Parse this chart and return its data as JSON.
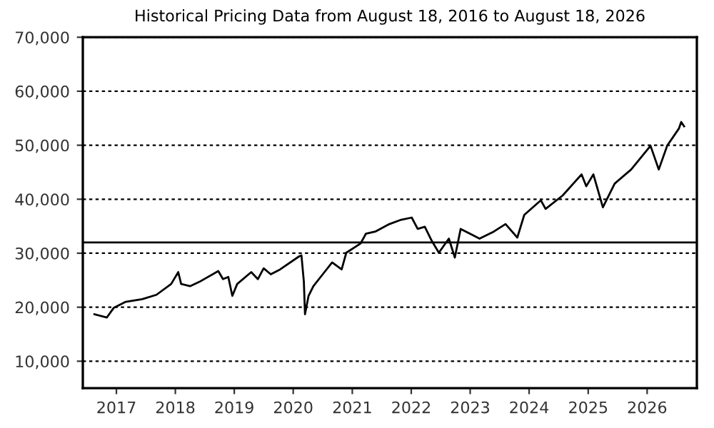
{
  "chart_data": {
    "type": "line",
    "title": "Historical Pricing Data from August 18, 2016 to August 18, 2026",
    "x": [
      "2016-08-18",
      "2016-11-03",
      "2016-12-16",
      "2017-02-28",
      "2017-06-10",
      "2017-09-06",
      "2017-12-06",
      "2018-01-19",
      "2018-02-06",
      "2018-04-02",
      "2018-05-30",
      "2018-09-24",
      "2018-10-23",
      "2018-11-25",
      "2018-12-20",
      "2019-01-19",
      "2019-04-16",
      "2019-05-27",
      "2019-07-02",
      "2019-08-15",
      "2019-10-12",
      "2020-02-06",
      "2020-02-21",
      "2020-03-07",
      "2020-03-14",
      "2020-04-05",
      "2020-05-05",
      "2020-07-02",
      "2020-08-29",
      "2020-10-27",
      "2020-11-25",
      "2021-02-21",
      "2021-03-26",
      "2021-05-23",
      "2021-08-19",
      "2021-10-31",
      "2022-01-04",
      "2022-02-10",
      "2022-03-26",
      "2022-05-08",
      "2022-06-21",
      "2022-08-22",
      "2022-09-28",
      "2022-11-03",
      "2023-01-01",
      "2023-02-28",
      "2023-05-27",
      "2023-08-08",
      "2023-10-20",
      "2023-12-02",
      "2024-03-14",
      "2024-04-12",
      "2024-07-27",
      "2024-11-21",
      "2024-12-20",
      "2025-02-02",
      "2025-04-02",
      "2025-06-14",
      "2025-09-24",
      "2026-01-22",
      "2026-03-14",
      "2026-05-05",
      "2026-07-17",
      "2026-07-31",
      "2026-08-18"
    ],
    "series": [
      {
        "color": "#000000",
        "values": [
          18700,
          18100,
          19900,
          21000,
          21500,
          22300,
          24300,
          26500,
          24300,
          23900,
          24700,
          26700,
          25200,
          25600,
          22100,
          24300,
          26500,
          25200,
          27200,
          26100,
          27000,
          29400,
          29600,
          24700,
          18700,
          22100,
          23900,
          26100,
          28300,
          27000,
          30100,
          31800,
          33600,
          34000,
          35400,
          36200,
          36600,
          34500,
          34900,
          32300,
          30100,
          32700,
          29200,
          34500,
          33600,
          32700,
          34000,
          35400,
          32900,
          37100,
          39800,
          38200,
          40700,
          44600,
          42400,
          44600,
          38500,
          42900,
          45500,
          49900,
          45500,
          49900,
          53100,
          54300,
          53500
        ]
      }
    ],
    "xlim": [
      "2016-06-07",
      "2026-11-05"
    ],
    "xticks": [
      {
        "value": "2017-01-01",
        "label": "2017"
      },
      {
        "value": "2018-01-01",
        "label": "2018"
      },
      {
        "value": "2019-01-01",
        "label": "2019"
      },
      {
        "value": "2020-01-01",
        "label": "2020"
      },
      {
        "value": "2021-01-01",
        "label": "2021"
      },
      {
        "value": "2022-01-01",
        "label": "2022"
      },
      {
        "value": "2023-01-01",
        "label": "2023"
      },
      {
        "value": "2024-01-01",
        "label": "2024"
      },
      {
        "value": "2025-01-01",
        "label": "2025"
      },
      {
        "value": "2026-01-01",
        "label": "2026"
      }
    ],
    "ylim": [
      5000,
      70000
    ],
    "yticks": [
      {
        "value": 10000,
        "label": "10,000"
      },
      {
        "value": 20000,
        "label": "20,000"
      },
      {
        "value": 30000,
        "label": "30,000"
      },
      {
        "value": 40000,
        "label": "40,000"
      },
      {
        "value": 50000,
        "label": "50,000"
      },
      {
        "value": 60000,
        "label": "60,000"
      },
      {
        "value": 70000,
        "label": "70,000"
      }
    ],
    "ref_lines": [
      {
        "axis": "y",
        "value": 32000,
        "color": "#000000",
        "line_style": "solid"
      }
    ],
    "grid": "y",
    "line_style": "solid",
    "marker": "none"
  }
}
